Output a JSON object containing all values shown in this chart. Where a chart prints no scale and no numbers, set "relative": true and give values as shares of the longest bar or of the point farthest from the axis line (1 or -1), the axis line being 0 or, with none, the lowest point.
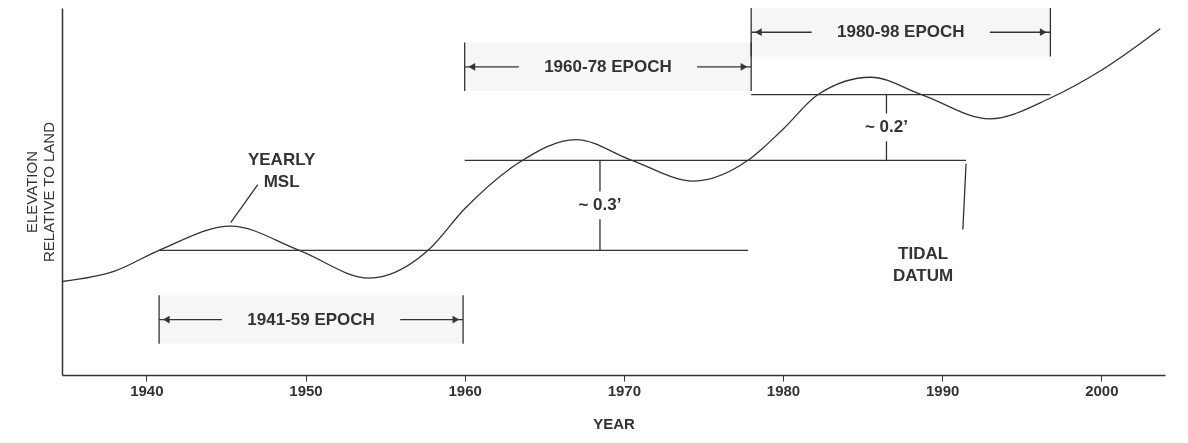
{
  "chart_data": {
    "type": "line",
    "relative": true,
    "xlabel": "YEAR",
    "ylabel": "ELEVATION\nRELATIVE TO LAND",
    "xlim": [
      1934.7,
      2004
    ],
    "xticks": [
      1940,
      1950,
      1960,
      1970,
      1980,
      1990,
      2000
    ],
    "grid": false,
    "marker": "none",
    "line_style": "solid",
    "series": [
      {
        "color": "#333333",
        "x": [
          1934.7,
          1938,
          1940.8,
          1945.3,
          1949.6,
          1954.0,
          1957.7,
          1960.0,
          1963.3,
          1967.0,
          1970.5,
          1974.4,
          1977.8,
          1980.0,
          1982.2,
          1985.5,
          1988.7,
          1993.0,
          1996.8,
          2000.0,
          2003.7
        ],
        "values": [
          0.27,
          0.3,
          0.36,
          0.43,
          0.36,
          0.28,
          0.36,
          0.48,
          0.61,
          0.68,
          0.62,
          0.56,
          0.62,
          0.71,
          0.81,
          0.86,
          0.81,
          0.74,
          0.8,
          0.88,
          1
        ]
      },
      {
        "color": "#333333",
        "x": [
          1940.8,
          1977.8
        ],
        "values": [
          0.36,
          0.36
        ]
      },
      {
        "color": "#333333",
        "x": [
          1960,
          1991.5
        ],
        "values": [
          0.62,
          0.62
        ]
      },
      {
        "color": "#333333",
        "x": [
          1978,
          1996.8
        ],
        "values": [
          0.81,
          0.81
        ]
      }
    ],
    "bands": [
      {
        "axis": "x",
        "from": 1940.8,
        "to": 1959.9,
        "label": "1941-59 EPOCH"
      },
      {
        "axis": "x",
        "from": 1960,
        "to": 1978,
        "label": "1960-78 EPOCH"
      },
      {
        "axis": "x",
        "from": 1978,
        "to": 1996.8,
        "label": "1980-98 EPOCH"
      }
    ],
    "annotations": [
      {
        "text": "YEARLY\nMSL",
        "x": 1945.3,
        "y": 0.43
      },
      {
        "text": "TIDAL\nDATUM",
        "x": 1991.5,
        "y": 0.62
      },
      {
        "text": "~ 0.3’",
        "x": 1968.5,
        "y": 0.36
      },
      {
        "text": "~ 0.2’",
        "x": 1986.5,
        "y": 0.62
      }
    ]
  }
}
